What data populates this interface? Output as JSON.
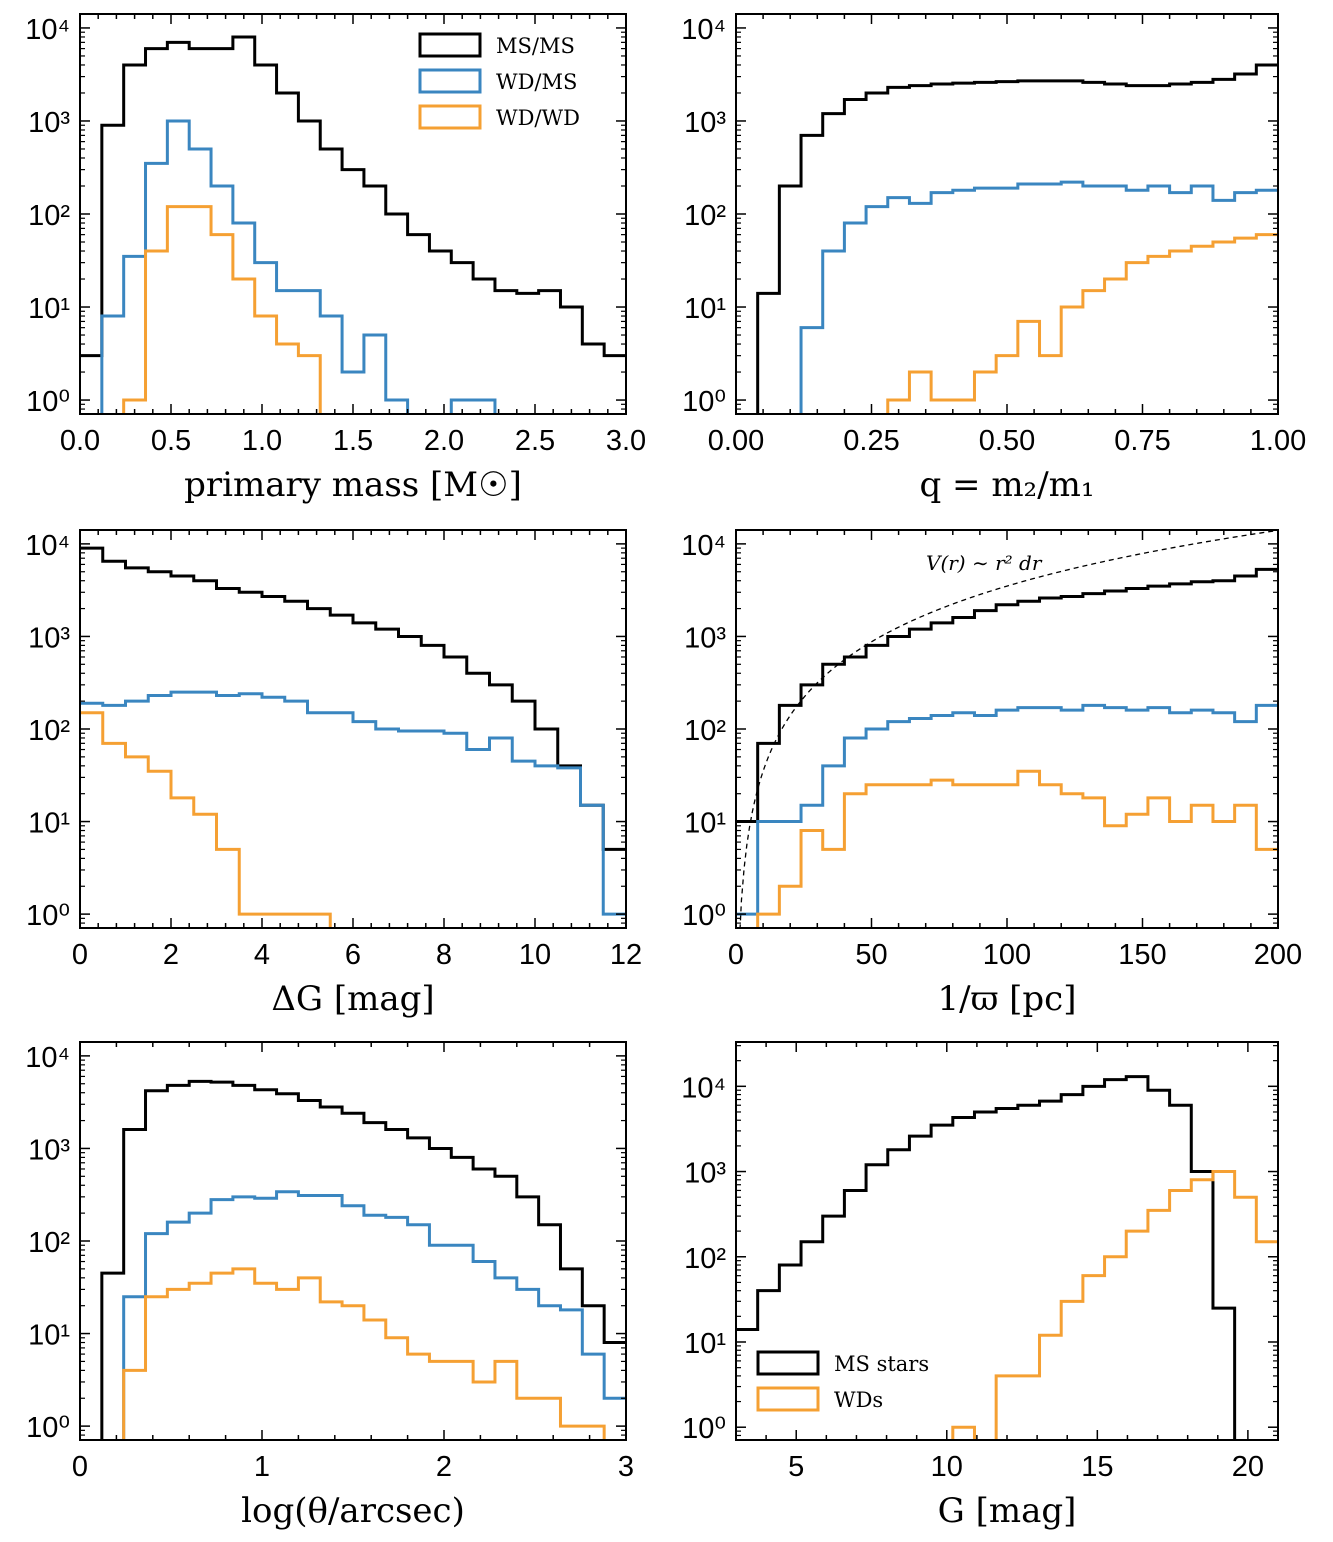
{
  "colors": {
    "ms": "#000000",
    "wdms": "#3a86c0",
    "wdwd": "#f5a033"
  },
  "chart_data": [
    {
      "type": "histogram",
      "scale_y": "log",
      "xlim": [
        0,
        3
      ],
      "ylim_log": [
        -0.15,
        4.15
      ],
      "xlabel": "primary mass [M☉]",
      "xticks": [
        0,
        0.5,
        1,
        1.5,
        2,
        2.5,
        3
      ],
      "xtick_labels": [
        "0.0",
        "0.5",
        "1.0",
        "1.5",
        "2.0",
        "2.5",
        "3.0"
      ],
      "ytick_labels": [
        "10⁰",
        "10¹",
        "10²",
        "10³",
        "10⁴"
      ],
      "legend": {
        "position": "top-right",
        "entries": [
          "MS/MS",
          "WD/MS",
          "WD/WD"
        ]
      },
      "bin_edges": [
        0,
        0.12,
        0.24,
        0.36,
        0.48,
        0.6,
        0.72,
        0.84,
        0.96,
        1.08,
        1.2,
        1.32,
        1.44,
        1.56,
        1.68,
        1.8,
        1.92,
        2.04,
        2.16,
        2.28,
        2.4,
        2.52,
        2.64,
        2.76,
        2.88,
        3.0
      ],
      "series": [
        {
          "name": "MS/MS",
          "color": "ms",
          "values": [
            3,
            900,
            4000,
            6000,
            7000,
            6000,
            6000,
            8000,
            4000,
            2000,
            1000,
            500,
            300,
            200,
            100,
            60,
            40,
            30,
            20,
            15,
            14,
            15,
            10,
            4,
            3
          ]
        },
        {
          "name": "WD/MS",
          "color": "wdms",
          "values": [
            0,
            8,
            35,
            350,
            1000,
            500,
            200,
            80,
            30,
            15,
            15,
            8,
            2,
            5,
            1,
            0.7,
            0.3,
            1,
            1,
            0.7,
            0,
            0,
            0,
            0,
            0
          ]
        },
        {
          "name": "WD/WD",
          "color": "wdwd",
          "values": [
            0,
            0,
            1,
            40,
            120,
            120,
            60,
            20,
            8,
            4,
            3,
            0.7,
            0,
            0,
            0,
            0,
            0,
            0,
            0,
            0,
            0,
            0,
            0,
            0,
            0
          ]
        }
      ]
    },
    {
      "type": "histogram",
      "scale_y": "log",
      "xlim": [
        0,
        1
      ],
      "ylim_log": [
        -0.15,
        4.15
      ],
      "xlabel": "q = m₂/m₁",
      "xticks": [
        0,
        0.25,
        0.5,
        0.75,
        1
      ],
      "xtick_labels": [
        "0.00",
        "0.25",
        "0.50",
        "0.75",
        "1.00"
      ],
      "ytick_labels": [
        "10⁰",
        "10¹",
        "10²",
        "10³",
        "10⁴"
      ],
      "bin_edges": [
        0,
        0.04,
        0.08,
        0.12,
        0.16,
        0.2,
        0.24,
        0.28,
        0.32,
        0.36,
        0.4,
        0.44,
        0.48,
        0.52,
        0.56,
        0.6,
        0.64,
        0.68,
        0.72,
        0.76,
        0.8,
        0.84,
        0.88,
        0.92,
        0.96,
        1.0
      ],
      "series": [
        {
          "name": "MS/MS",
          "color": "ms",
          "values": [
            0,
            14,
            200,
            700,
            1200,
            1700,
            2000,
            2300,
            2400,
            2500,
            2550,
            2600,
            2650,
            2700,
            2700,
            2700,
            2600,
            2500,
            2400,
            2400,
            2500,
            2600,
            2800,
            3200,
            4000
          ]
        },
        {
          "name": "WD/MS",
          "color": "wdms",
          "values": [
            0,
            0,
            0.5,
            6,
            40,
            80,
            120,
            150,
            130,
            170,
            180,
            190,
            190,
            210,
            210,
            220,
            200,
            200,
            180,
            200,
            170,
            200,
            140,
            170,
            180
          ]
        },
        {
          "name": "WD/WD",
          "color": "wdwd",
          "values": [
            0,
            0,
            0,
            0,
            0,
            0,
            0.5,
            1,
            2,
            1,
            1,
            2,
            3,
            7,
            3,
            10,
            15,
            20,
            30,
            35,
            40,
            45,
            50,
            55,
            60
          ]
        }
      ]
    },
    {
      "type": "histogram",
      "scale_y": "log",
      "xlim": [
        0,
        12
      ],
      "ylim_log": [
        -0.15,
        4.15
      ],
      "xlabel": "ΔG [mag]",
      "xticks": [
        0,
        2,
        4,
        6,
        8,
        10,
        12
      ],
      "xtick_labels": [
        "0",
        "2",
        "4",
        "6",
        "8",
        "10",
        "12"
      ],
      "ytick_labels": [
        "10⁰",
        "10¹",
        "10²",
        "10³",
        "10⁴"
      ],
      "bin_edges": [
        0,
        0.5,
        1,
        1.5,
        2,
        2.5,
        3,
        3.5,
        4,
        4.5,
        5,
        5.5,
        6,
        6.5,
        7,
        7.5,
        8,
        8.5,
        9,
        9.5,
        10,
        10.5,
        11,
        11.5,
        12
      ],
      "series": [
        {
          "name": "MS/MS",
          "color": "ms",
          "values": [
            9000,
            6500,
            5500,
            5000,
            4500,
            4000,
            3300,
            3000,
            2700,
            2400,
            2000,
            1700,
            1400,
            1200,
            1000,
            800,
            600,
            400,
            300,
            200,
            100,
            40,
            15,
            5
          ]
        },
        {
          "name": "WD/MS",
          "color": "wdms",
          "values": [
            190,
            180,
            200,
            230,
            250,
            250,
            230,
            240,
            220,
            200,
            150,
            150,
            120,
            100,
            95,
            95,
            90,
            60,
            80,
            45,
            40,
            38,
            15,
            1
          ]
        },
        {
          "name": "WD/WD",
          "color": "wdwd",
          "values": [
            150,
            70,
            50,
            35,
            18,
            12,
            5,
            1,
            1,
            1,
            1,
            0,
            0,
            0,
            0,
            0,
            0,
            0,
            0,
            0,
            0,
            0,
            0,
            0
          ]
        }
      ]
    },
    {
      "type": "histogram",
      "scale_y": "log",
      "xlim": [
        0,
        200
      ],
      "ylim_log": [
        -0.15,
        4.15
      ],
      "xlabel": "1/ϖ [pc]",
      "xticks": [
        0,
        50,
        100,
        150,
        200
      ],
      "xtick_labels": [
        "0",
        "50",
        "100",
        "150",
        "200"
      ],
      "ytick_labels": [
        "10⁰",
        "10¹",
        "10²",
        "10³",
        "10⁴"
      ],
      "annotation": "V(r) ∼ r² dr",
      "reference_curve": "V(r) ∝ r²",
      "bin_edges": [
        0,
        8,
        16,
        24,
        32,
        40,
        48,
        56,
        64,
        72,
        80,
        88,
        96,
        104,
        112,
        120,
        128,
        136,
        144,
        152,
        160,
        168,
        176,
        184,
        192,
        200
      ],
      "series": [
        {
          "name": "MS/MS",
          "color": "ms",
          "values": [
            10,
            70,
            180,
            300,
            500,
            600,
            800,
            1000,
            1200,
            1400,
            1600,
            1900,
            2200,
            2400,
            2600,
            2700,
            2900,
            3100,
            3300,
            3500,
            3700,
            3900,
            4000,
            4500,
            5300
          ]
        },
        {
          "name": "WD/MS",
          "color": "wdms",
          "values": [
            1,
            10,
            10,
            15,
            40,
            80,
            100,
            120,
            130,
            140,
            150,
            140,
            160,
            170,
            170,
            160,
            180,
            170,
            160,
            170,
            150,
            160,
            150,
            120,
            180
          ]
        },
        {
          "name": "WD/WD",
          "color": "wdwd",
          "values": [
            0,
            1,
            2,
            8,
            5,
            20,
            25,
            25,
            25,
            28,
            25,
            25,
            25,
            35,
            25,
            20,
            18,
            9,
            12,
            18,
            10,
            15,
            10,
            15,
            5
          ]
        }
      ]
    },
    {
      "type": "histogram",
      "scale_y": "log",
      "xlim": [
        0,
        3
      ],
      "ylim_log": [
        -0.15,
        4.15
      ],
      "xlabel": "log(θ/arcsec)",
      "xticks": [
        0,
        1,
        2,
        3
      ],
      "xtick_labels": [
        "0",
        "1",
        "2",
        "3"
      ],
      "ytick_labels": [
        "10⁰",
        "10¹",
        "10²",
        "10³",
        "10⁴"
      ],
      "bin_edges": [
        0,
        0.12,
        0.24,
        0.36,
        0.48,
        0.6,
        0.72,
        0.84,
        0.96,
        1.08,
        1.2,
        1.32,
        1.44,
        1.56,
        1.68,
        1.8,
        1.92,
        2.04,
        2.16,
        2.28,
        2.4,
        2.52,
        2.64,
        2.76,
        2.88,
        3.0
      ],
      "series": [
        {
          "name": "MS/MS",
          "color": "ms",
          "values": [
            0,
            45,
            1600,
            4200,
            4800,
            5300,
            5200,
            4800,
            4300,
            3900,
            3300,
            2800,
            2400,
            1900,
            1600,
            1300,
            1000,
            800,
            600,
            500,
            300,
            150,
            50,
            20,
            8
          ]
        },
        {
          "name": "WD/MS",
          "color": "wdms",
          "values": [
            0,
            0,
            25,
            120,
            160,
            200,
            280,
            300,
            290,
            340,
            310,
            310,
            240,
            190,
            180,
            150,
            90,
            90,
            60,
            40,
            30,
            20,
            18,
            6,
            2
          ]
        },
        {
          "name": "WD/WD",
          "color": "wdwd",
          "values": [
            0,
            0,
            4,
            25,
            30,
            35,
            45,
            50,
            35,
            30,
            40,
            22,
            20,
            14,
            9,
            6,
            5,
            5,
            3,
            5,
            2,
            2,
            1,
            1,
            0
          ]
        }
      ]
    },
    {
      "type": "histogram",
      "scale_y": "log",
      "xlim": [
        3,
        21
      ],
      "ylim_log": [
        -0.15,
        4.52
      ],
      "xlabel": "G [mag]",
      "xticks": [
        5,
        10,
        15,
        20
      ],
      "xtick_labels": [
        "5",
        "10",
        "15",
        "20"
      ],
      "ytick_labels": [
        "10⁰",
        "10¹",
        "10²",
        "10³",
        "10⁴"
      ],
      "legend": {
        "position": "bottom-left",
        "entries": [
          "MS stars",
          "WDs"
        ]
      },
      "bin_edges": [
        3,
        3.72,
        4.44,
        5.16,
        5.88,
        6.6,
        7.32,
        8.04,
        8.76,
        9.48,
        10.2,
        10.92,
        11.64,
        12.36,
        13.08,
        13.8,
        14.52,
        15.24,
        15.96,
        16.68,
        17.4,
        18.12,
        18.84,
        19.56,
        20.28,
        21.0
      ],
      "series": [
        {
          "name": "MS stars",
          "color": "ms",
          "values": [
            14,
            40,
            80,
            150,
            300,
            600,
            1200,
            1800,
            2600,
            3500,
            4300,
            5000,
            5500,
            6000,
            6700,
            8000,
            10000,
            12000,
            13000,
            9000,
            6000,
            1000,
            25,
            0,
            0
          ]
        },
        {
          "name": "WDs",
          "color": "wdwd",
          "values": [
            0,
            0,
            0,
            0,
            0,
            0,
            0,
            0,
            0,
            0,
            1,
            0,
            4,
            4,
            12,
            30,
            60,
            100,
            200,
            350,
            600,
            800,
            1000,
            500,
            150
          ]
        }
      ]
    }
  ]
}
